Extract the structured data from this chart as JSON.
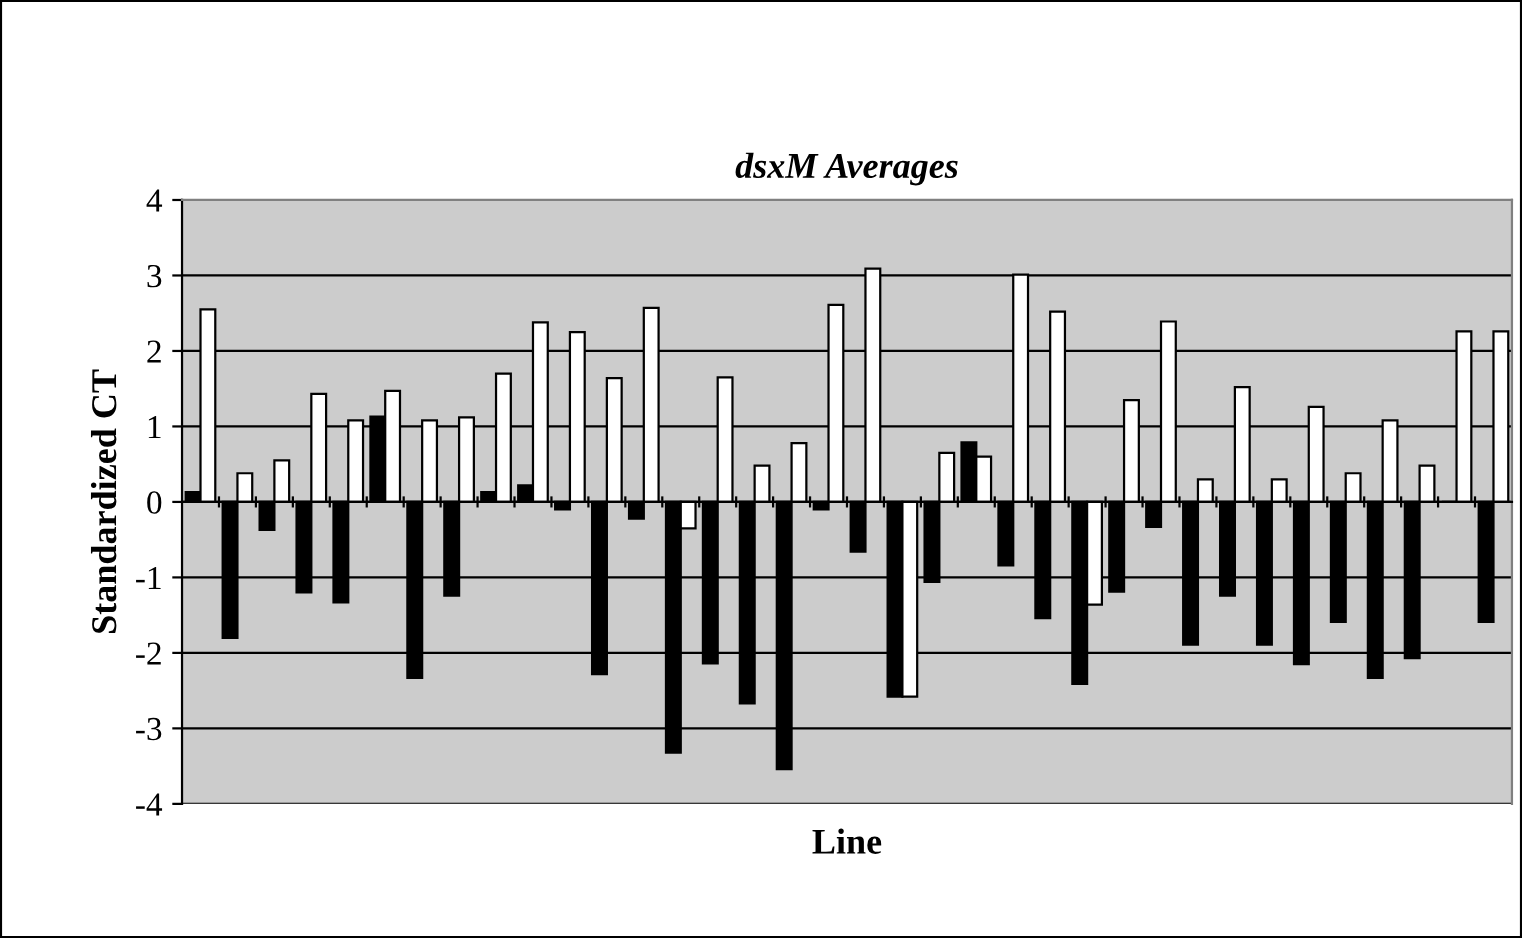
{
  "chart_data": {
    "type": "bar",
    "title": "dsxM Averages",
    "xlabel": "Line",
    "ylabel": "Standardized CT",
    "categories": [
      null,
      null,
      null,
      null,
      null,
      null,
      null,
      null,
      null,
      null,
      null,
      null,
      null,
      null,
      null,
      null,
      null,
      null,
      null,
      null,
      null,
      null,
      null,
      null,
      null,
      null,
      null,
      null,
      null,
      null,
      null,
      null,
      null,
      null,
      null,
      null
    ],
    "series": [
      {
        "color": "#000000",
        "values": [
          0.13,
          -1.8,
          -0.37,
          -1.2,
          -1.33,
          1.13,
          -2.33,
          -1.24,
          0.13,
          0.22,
          -0.1,
          -2.28,
          -0.22,
          -3.32,
          -2.14,
          -2.67,
          -3.54,
          -0.1,
          -0.66,
          -2.58,
          -1.06,
          0.79,
          -0.84,
          -1.54,
          -2.41,
          -1.19,
          -0.33,
          -1.89,
          -1.24,
          -1.89,
          -2.15,
          -1.59,
          -2.33,
          -2.07,
          0,
          -1.59
        ]
      },
      {
        "color": "#ffffff",
        "values": [
          2.55,
          0.38,
          0.55,
          1.43,
          1.08,
          1.47,
          1.08,
          1.12,
          1.7,
          2.38,
          2.25,
          1.64,
          2.57,
          -0.35,
          1.65,
          0.48,
          0.78,
          2.61,
          3.09,
          -2.58,
          0.65,
          0.6,
          3.01,
          2.52,
          -1.36,
          1.35,
          2.39,
          0.3,
          1.52,
          0.3,
          1.26,
          0.38,
          1.08,
          0.48,
          2.26,
          2.26
        ]
      }
    ],
    "ylim": [
      -4,
      4
    ],
    "yticks": [
      -4,
      -3,
      -2,
      -1,
      0,
      1,
      2,
      3,
      4
    ],
    "grid": "y"
  }
}
